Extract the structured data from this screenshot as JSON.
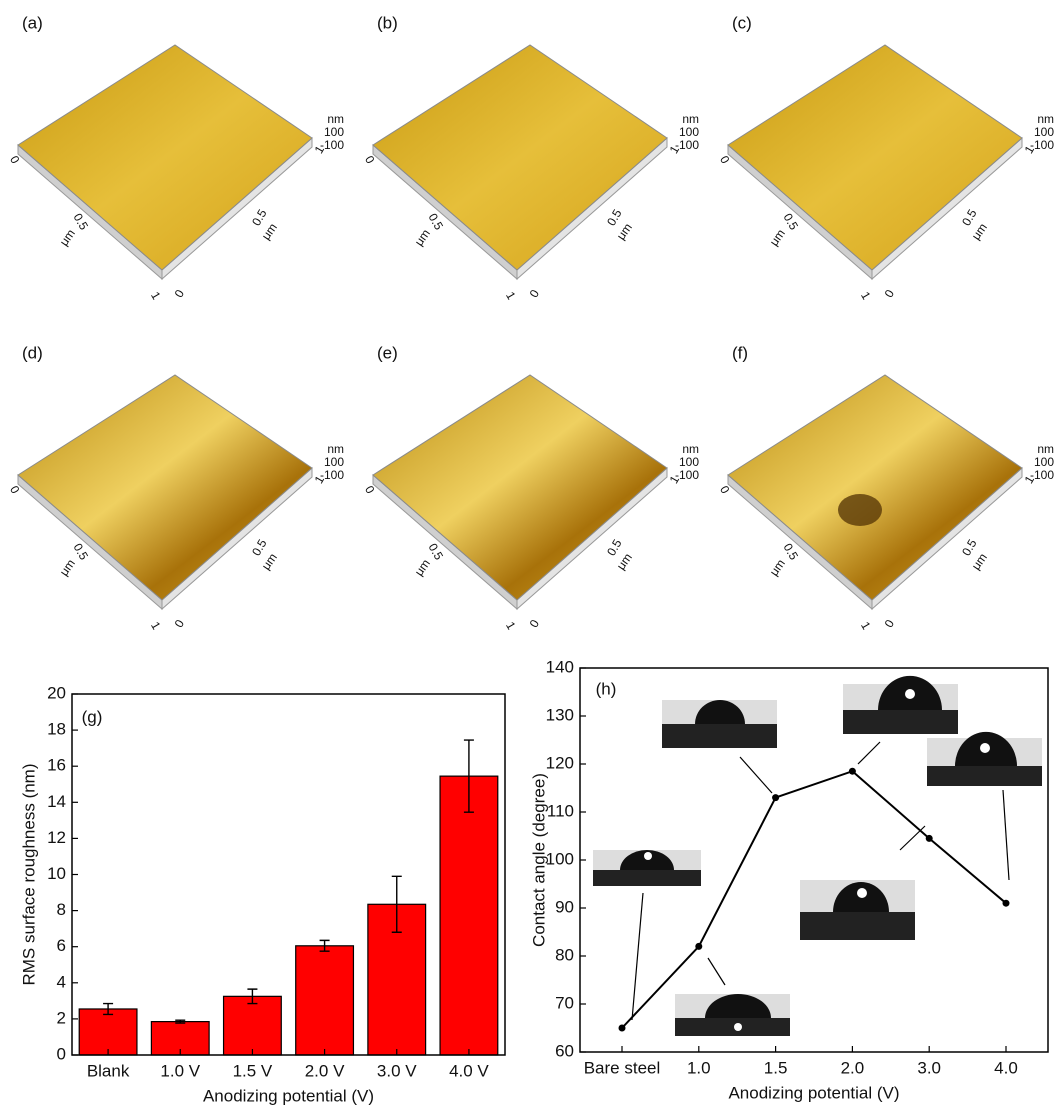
{
  "afm_panels": {
    "labels": [
      "(a)",
      "(b)",
      "(c)",
      "(d)",
      "(e)",
      "(f)"
    ],
    "z_unit": "nm",
    "z_ticks": [
      "100",
      "-100"
    ],
    "axis_ticks": [
      "0",
      "0.5",
      "1"
    ],
    "axis_unit": "μm"
  },
  "chart_data": [
    {
      "type": "bar",
      "panel_label": "(g)",
      "x_label": "Anodizing potential (V)",
      "y_label": "RMS surface roughness (nm)",
      "categories": [
        "Blank",
        "1.0 V",
        "1.5 V",
        "2.0 V",
        "3.0 V",
        "4.0 V"
      ],
      "values": [
        2.55,
        1.85,
        3.25,
        6.05,
        8.35,
        15.45
      ],
      "errors": [
        0.3,
        0.08,
        0.4,
        0.3,
        1.55,
        2.0
      ],
      "color": "#ff0000",
      "ylim": [
        0,
        20
      ],
      "yticks": [
        0,
        2,
        4,
        6,
        8,
        10,
        12,
        14,
        16,
        18,
        20
      ]
    },
    {
      "type": "line",
      "panel_label": "(h)",
      "x_label": "Anodizing potential (V)",
      "y_label": "Contact angle (degree)",
      "categories": [
        "Bare steel",
        "1.0",
        "1.5",
        "2.0",
        "3.0",
        "4.0"
      ],
      "values": [
        65,
        82,
        113,
        118.5,
        104.5,
        91
      ],
      "color": "#000000",
      "ylim": [
        60,
        140
      ],
      "yticks": [
        60,
        70,
        80,
        90,
        100,
        110,
        120,
        130,
        140
      ]
    }
  ]
}
